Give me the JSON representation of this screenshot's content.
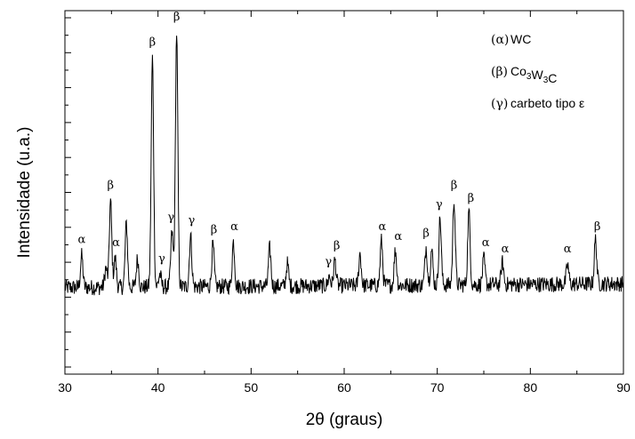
{
  "chart_data": {
    "type": "line",
    "xlabel": "2θ (graus)",
    "ylabel": "Intensidade (u.a.)",
    "xlim": [
      30,
      90
    ],
    "ylim": [
      0,
      100
    ],
    "x_ticks": [
      "30",
      "40",
      "50",
      "60",
      "70",
      "80",
      "90"
    ],
    "grid": false,
    "y_tick_labels": false,
    "legend_position": "top-right",
    "legend": [
      {
        "symbol": "(α)",
        "text": "WC"
      },
      {
        "symbol": "(β)",
        "text": "Co3W3C"
      },
      {
        "symbol": "(γ)",
        "text": "carbeto tipo ε"
      }
    ],
    "baseline": 18,
    "noise": 1.4,
    "color": "#000000",
    "peaks": [
      {
        "x": 31.8,
        "y": 28
      },
      {
        "x": 34.4,
        "y": 24
      },
      {
        "x": 34.9,
        "y": 45
      },
      {
        "x": 35.4,
        "y": 27
      },
      {
        "x": 36.6,
        "y": 38
      },
      {
        "x": 37.8,
        "y": 27
      },
      {
        "x": 39.4,
        "y": 90
      },
      {
        "x": 40.2,
        "y": 22
      },
      {
        "x": 41.5,
        "y": 35
      },
      {
        "x": 42.0,
        "y": 98
      },
      {
        "x": 43.5,
        "y": 34
      },
      {
        "x": 45.9,
        "y": 31
      },
      {
        "x": 48.1,
        "y": 32
      },
      {
        "x": 52.0,
        "y": 30
      },
      {
        "x": 53.9,
        "y": 25
      },
      {
        "x": 58.4,
        "y": 21
      },
      {
        "x": 59.0,
        "y": 26
      },
      {
        "x": 61.7,
        "y": 28
      },
      {
        "x": 64.0,
        "y": 32
      },
      {
        "x": 65.5,
        "y": 29
      },
      {
        "x": 68.8,
        "y": 30
      },
      {
        "x": 69.4,
        "y": 29
      },
      {
        "x": 70.3,
        "y": 39
      },
      {
        "x": 71.8,
        "y": 45
      },
      {
        "x": 73.4,
        "y": 41
      },
      {
        "x": 75.0,
        "y": 26
      },
      {
        "x": 77.0,
        "y": 25
      },
      {
        "x": 84.0,
        "y": 24
      },
      {
        "x": 87.0,
        "y": 32
      }
    ],
    "annotations": [
      {
        "label": "α",
        "x": 31.8,
        "y": 32
      },
      {
        "label": "β",
        "x": 34.9,
        "y": 49
      },
      {
        "label": "α",
        "x": 35.5,
        "y": 31
      },
      {
        "label": "β",
        "x": 39.4,
        "y": 94
      },
      {
        "label": "γ",
        "x": 40.4,
        "y": 26
      },
      {
        "label": "β",
        "x": 42.0,
        "y": 102
      },
      {
        "label": "γ",
        "x": 41.4,
        "y": 39
      },
      {
        "label": "γ",
        "x": 43.6,
        "y": 38
      },
      {
        "label": "β",
        "x": 46.0,
        "y": 35
      },
      {
        "label": "α",
        "x": 48.2,
        "y": 36
      },
      {
        "label": "γ",
        "x": 58.3,
        "y": 25
      },
      {
        "label": "β",
        "x": 59.2,
        "y": 30
      },
      {
        "label": "α",
        "x": 64.1,
        "y": 36
      },
      {
        "label": "α",
        "x": 65.8,
        "y": 33
      },
      {
        "label": "β",
        "x": 68.8,
        "y": 34
      },
      {
        "label": "γ",
        "x": 70.2,
        "y": 43
      },
      {
        "label": "β",
        "x": 71.8,
        "y": 49
      },
      {
        "label": "β",
        "x": 73.6,
        "y": 45
      },
      {
        "label": "α",
        "x": 75.2,
        "y": 31
      },
      {
        "label": "α",
        "x": 77.3,
        "y": 29
      },
      {
        "label": "α",
        "x": 84.0,
        "y": 29
      },
      {
        "label": "β",
        "x": 87.2,
        "y": 36
      }
    ]
  }
}
